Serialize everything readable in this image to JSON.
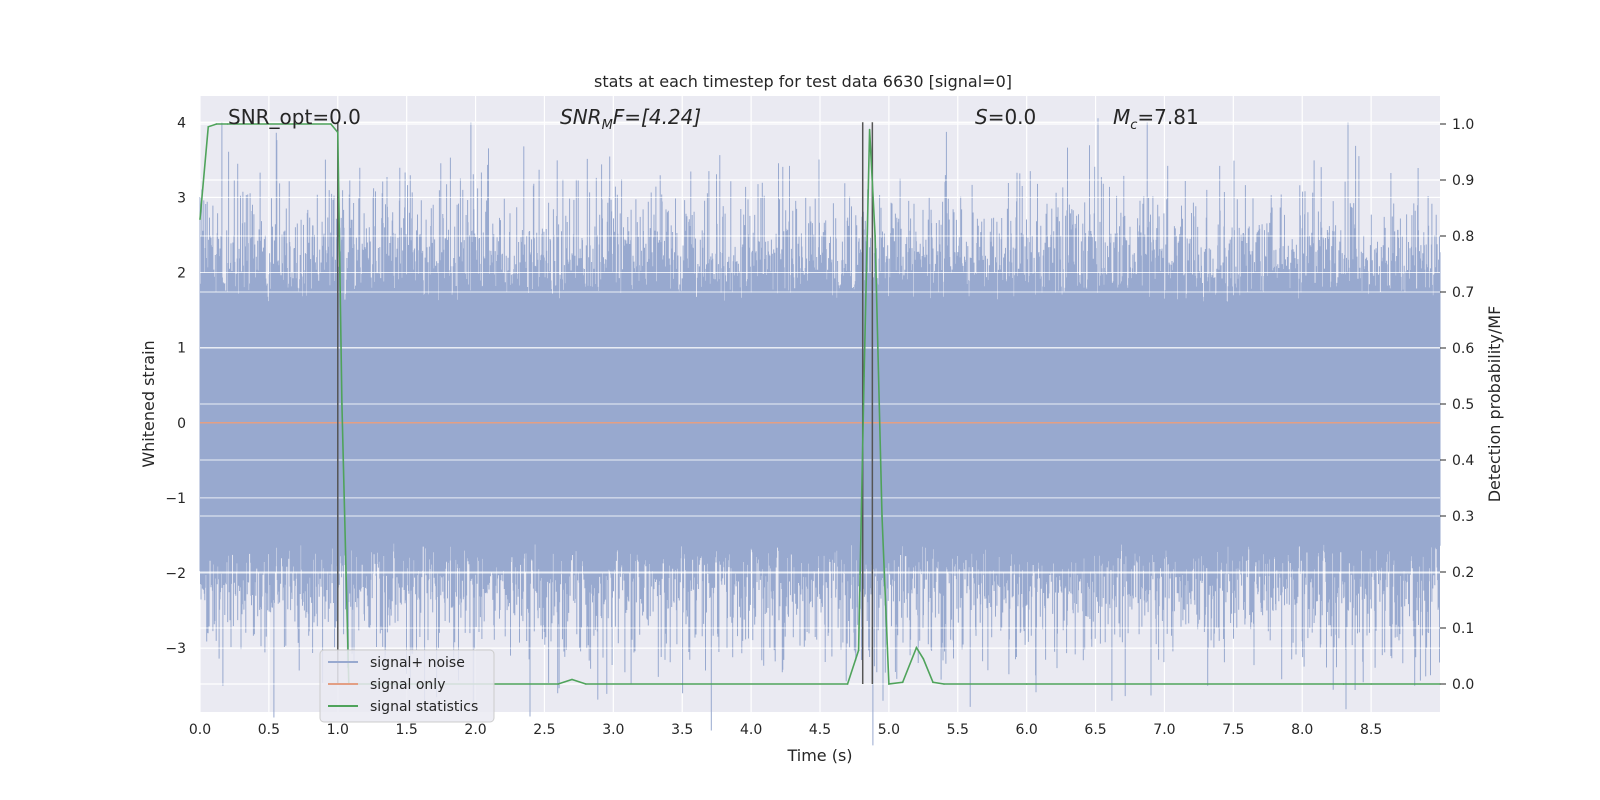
{
  "chart_data": {
    "type": "line",
    "title": "stats at each timestep for test data 6630 [signal=0]",
    "xlabel": "Time (s)",
    "ylabel_left": "Whitened strain",
    "ylabel_right": "Detection probability/MF",
    "xlim": [
      0.0,
      9.0
    ],
    "ylim_left": [
      -3.85,
      4.35
    ],
    "ylim_right": [
      -0.05,
      1.05
    ],
    "xticks": [
      0.0,
      0.5,
      1.0,
      1.5,
      2.0,
      2.5,
      3.0,
      3.5,
      4.0,
      4.5,
      5.0,
      5.5,
      6.0,
      6.5,
      7.0,
      7.5,
      8.0,
      8.5
    ],
    "xtick_labels": [
      "0.0",
      "0.5",
      "1.0",
      "1.5",
      "2.0",
      "2.5",
      "3.0",
      "3.5",
      "4.0",
      "4.5",
      "5.0",
      "5.5",
      "6.0",
      "6.5",
      "7.0",
      "7.5",
      "8.0",
      "8.5"
    ],
    "yticks_left": [
      4,
      3,
      2,
      1,
      0,
      -1,
      -2,
      -3
    ],
    "ytick_labels_left": [
      "4",
      "3",
      "2",
      "1",
      "0",
      "−1",
      "−2",
      "−3"
    ],
    "yticks_right": [
      1.0,
      0.9,
      0.8,
      0.7,
      0.6,
      0.5,
      0.4,
      0.3,
      0.2,
      0.1,
      0.0
    ],
    "ytick_labels_right": [
      "1.0",
      "0.9",
      "0.8",
      "0.7",
      "0.6",
      "0.5",
      "0.4",
      "0.3",
      "0.2",
      "0.1",
      "0.0"
    ],
    "grid": true,
    "legend_position": "bottom-left",
    "annotations": {
      "snr_opt": "SNR_opt=0.0",
      "snr_mf_main": "SNR",
      "snr_mf_sub": "M",
      "snr_mf_rest": "F=[4.24]",
      "s_main": "S",
      "s_rest": "=0.0",
      "mc_main": "M",
      "mc_sub": "c",
      "mc_rest": "=7.81"
    },
    "vertical_lines_x": [
      1.0,
      4.81,
      4.88
    ],
    "noise_band": {
      "typical_min": -1.6,
      "typical_max": 1.6,
      "peak_min": -3.7,
      "peak_max": 4.0
    },
    "series": [
      {
        "name": "signal+ noise",
        "color": "#98a9cf",
        "axis": "left",
        "kind": "noise"
      },
      {
        "name": "signal only",
        "color": "#e39f84",
        "axis": "left",
        "x": [
          0.0,
          9.0
        ],
        "y": [
          0.0,
          0.0
        ]
      },
      {
        "name": "signal statistics",
        "color": "#4fa35b",
        "axis": "right",
        "x": [
          0.0,
          0.06,
          0.12,
          0.2,
          0.5,
          0.95,
          1.0,
          1.03,
          1.08,
          1.15,
          1.3,
          2.6,
          2.7,
          2.8,
          3.5,
          4.7,
          4.78,
          4.82,
          4.86,
          4.9,
          4.95,
          5.0,
          5.1,
          5.2,
          5.25,
          5.32,
          5.4,
          6.0,
          8.3,
          8.5,
          9.0
        ],
        "y": [
          0.83,
          0.995,
          1.0,
          1.0,
          1.0,
          1.0,
          0.985,
          0.5,
          0.0,
          0.0,
          0.0,
          0.0,
          0.008,
          0.0,
          0.0,
          0.0,
          0.06,
          0.55,
          0.99,
          0.8,
          0.3,
          0.0,
          0.003,
          0.065,
          0.045,
          0.003,
          0.0,
          0.0,
          0.0,
          0.0,
          0.0
        ]
      }
    ]
  }
}
